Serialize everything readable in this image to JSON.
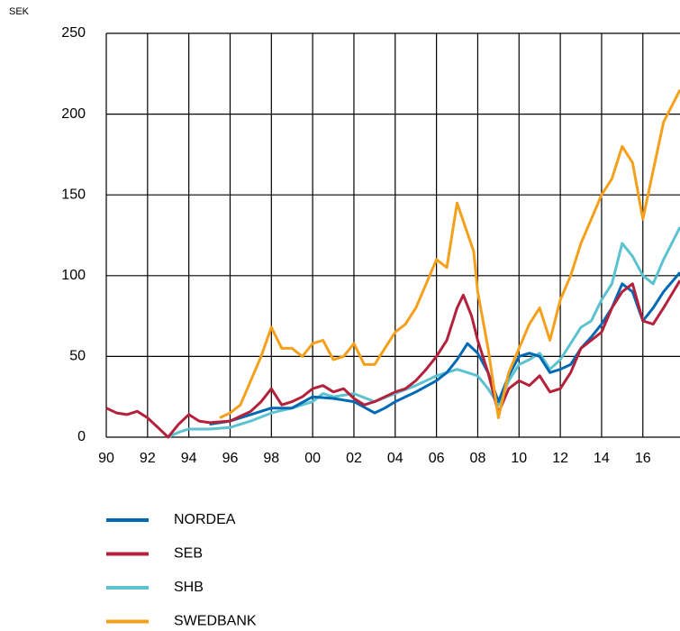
{
  "chart_data": {
    "type": "line",
    "y_label": "SEK",
    "xlim": [
      1990,
      2017.8
    ],
    "ylim": [
      0,
      250
    ],
    "xticks": [
      {
        "value": 1990,
        "label": "90"
      },
      {
        "value": 1992,
        "label": "92"
      },
      {
        "value": 1994,
        "label": "94"
      },
      {
        "value": 1996,
        "label": "96"
      },
      {
        "value": 1998,
        "label": "98"
      },
      {
        "value": 2000,
        "label": "00"
      },
      {
        "value": 2002,
        "label": "02"
      },
      {
        "value": 2004,
        "label": "04"
      },
      {
        "value": 2006,
        "label": "06"
      },
      {
        "value": 2008,
        "label": "08"
      },
      {
        "value": 2010,
        "label": "10"
      },
      {
        "value": 2012,
        "label": "12"
      },
      {
        "value": 2014,
        "label": "14"
      },
      {
        "value": 2016,
        "label": "16"
      }
    ],
    "yticks": [
      0,
      50,
      100,
      150,
      200,
      250
    ],
    "grid": true,
    "series": [
      {
        "name": "NORDEA",
        "color": "#0069b4",
        "x": [
          1995,
          1996,
          1997,
          1998,
          1999,
          2000,
          2001,
          2002,
          2003,
          2003.5,
          2004,
          2005,
          2006,
          2006.5,
          2007,
          2007.5,
          2008,
          2008.5,
          2009,
          2009.5,
          2010,
          2010.5,
          2011,
          2011.5,
          2012,
          2012.5,
          2013,
          2013.5,
          2014,
          2014.5,
          2015,
          2015.5,
          2016,
          2016.5,
          2017,
          2017.8
        ],
        "values": [
          8,
          10,
          14,
          18,
          18,
          25,
          24,
          22,
          15,
          18,
          22,
          28,
          35,
          40,
          48,
          58,
          52,
          40,
          22,
          38,
          50,
          52,
          50,
          40,
          42,
          45,
          55,
          62,
          70,
          80,
          95,
          90,
          72,
          80,
          90,
          102
        ]
      },
      {
        "name": "SEB",
        "color": "#b5213b",
        "x": [
          1990,
          1990.5,
          1991,
          1991.5,
          1992,
          1992.5,
          1993,
          1993.5,
          1994,
          1994.5,
          1995,
          1996,
          1997,
          1997.5,
          1998,
          1998.5,
          1999,
          1999.5,
          2000,
          2000.5,
          2001,
          2001.5,
          2002,
          2002.5,
          2003,
          2004,
          2004.5,
          2005,
          2005.5,
          2006,
          2006.5,
          2007,
          2007.3,
          2007.7,
          2008,
          2008.5,
          2009,
          2009.5,
          2010,
          2010.5,
          2011,
          2011.5,
          2012,
          2012.5,
          2013,
          2013.5,
          2014,
          2014.5,
          2015,
          2015.5,
          2016,
          2016.5,
          2017,
          2017.8
        ],
        "values": [
          18,
          15,
          14,
          16,
          12,
          6,
          0,
          8,
          14,
          10,
          9,
          10,
          16,
          22,
          30,
          20,
          22,
          25,
          30,
          32,
          28,
          30,
          24,
          20,
          22,
          28,
          30,
          35,
          42,
          50,
          60,
          80,
          88,
          75,
          60,
          40,
          15,
          30,
          35,
          32,
          38,
          28,
          30,
          40,
          55,
          60,
          65,
          80,
          90,
          95,
          72,
          70,
          80,
          97
        ]
      },
      {
        "name": "SHB",
        "color": "#5bc2d0",
        "x": [
          1993,
          1993.5,
          1994,
          1995,
          1996,
          1997,
          1998,
          1999,
          2000,
          2000.5,
          2001,
          2002,
          2003,
          2004,
          2005,
          2006,
          2007,
          2008,
          2008.5,
          2009,
          2009.5,
          2010,
          2010.5,
          2011,
          2011.5,
          2012,
          2012.5,
          2013,
          2013.5,
          2014,
          2014.5,
          2015,
          2015.5,
          2016,
          2016.5,
          2017,
          2017.8
        ],
        "values": [
          0,
          3,
          5,
          5,
          6,
          10,
          15,
          18,
          22,
          27,
          25,
          27,
          22,
          27,
          32,
          38,
          42,
          38,
          30,
          20,
          35,
          45,
          48,
          52,
          42,
          48,
          58,
          68,
          72,
          85,
          95,
          120,
          112,
          100,
          95,
          110,
          130
        ]
      },
      {
        "name": "SWEDBANK",
        "color": "#f5a01a",
        "x": [
          1995.5,
          1996,
          1996.5,
          1997,
          1997.5,
          1998,
          1998.5,
          1999,
          1999.5,
          2000,
          2000.5,
          2001,
          2001.5,
          2002,
          2002.5,
          2003,
          2003.5,
          2004,
          2004.5,
          2005,
          2005.5,
          2006,
          2006.5,
          2007,
          2007.4,
          2007.8,
          2008,
          2008.5,
          2009,
          2009.5,
          2010,
          2010.5,
          2011,
          2011.5,
          2012,
          2012.5,
          2013,
          2013.5,
          2014,
          2014.5,
          2015,
          2015.5,
          2016,
          2016.5,
          2017,
          2017.8
        ],
        "values": [
          12,
          15,
          20,
          35,
          50,
          68,
          55,
          55,
          50,
          58,
          60,
          48,
          50,
          58,
          45,
          45,
          55,
          65,
          70,
          80,
          95,
          110,
          105,
          145,
          130,
          115,
          90,
          55,
          12,
          40,
          55,
          70,
          80,
          60,
          85,
          100,
          120,
          135,
          150,
          160,
          180,
          170,
          135,
          165,
          195,
          215
        ]
      }
    ]
  }
}
